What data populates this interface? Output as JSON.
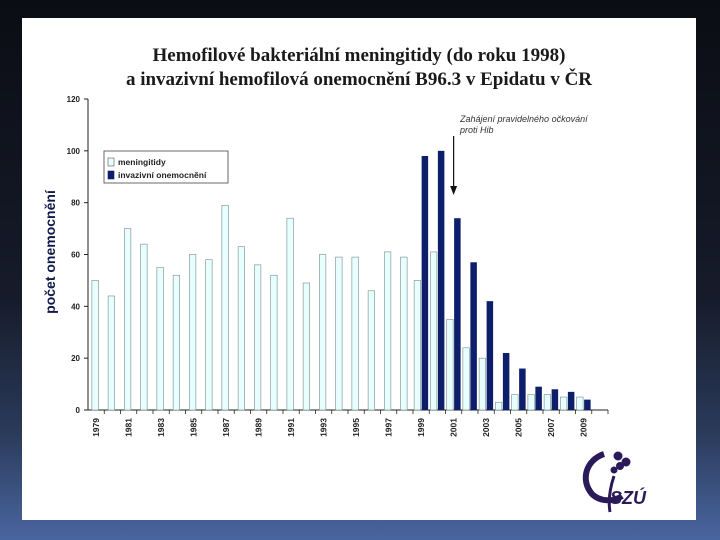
{
  "title_line1": "Hemofilové bakteriální meningitidy (do roku 1998)",
  "title_line2": "a invazivní hemofilová onemocnění B96.3 v Epidatu v ČR",
  "logo_text": "SZÚ",
  "colors": {
    "meningitidy": "#e8ffff",
    "invazivni": "#0d1f6a",
    "axis": "#222222"
  },
  "chart_data": {
    "type": "bar",
    "title": "Hemofilové bakteriální meningitidy (do roku 1998) a invazivní hemofilová onemocnění B96.3 v Epidatu v ČR",
    "ylabel": "počet onemocnění",
    "xlabel": "",
    "ylim": [
      0,
      120
    ],
    "yticks": [
      0,
      20,
      40,
      60,
      80,
      100,
      120
    ],
    "legend_position": "top-left",
    "annotation": {
      "text_line1": "Zahájení pravidelného očkování",
      "text_line2": "proti Hib",
      "year": "2001"
    },
    "categories": [
      "1979",
      "1980",
      "1981",
      "1982",
      "1983",
      "1984",
      "1985",
      "1986",
      "1987",
      "1988",
      "1989",
      "1990",
      "1991",
      "1992",
      "1993",
      "1994",
      "1995",
      "1996",
      "1997",
      "1998",
      "1999",
      "2000",
      "2001",
      "2002",
      "2003",
      "2004",
      "2005",
      "2006",
      "2007",
      "2008",
      "2009",
      "2010"
    ],
    "xtick_labels": [
      "1979",
      "1981",
      "1983",
      "1985",
      "1987",
      "1989",
      "1991",
      "1993",
      "1995",
      "1997",
      "1999",
      "2001",
      "2003",
      "2005",
      "2007",
      "2009"
    ],
    "series": [
      {
        "name": "meningitidy",
        "values": [
          50,
          44,
          70,
          64,
          55,
          52,
          60,
          58,
          79,
          63,
          56,
          52,
          74,
          49,
          60,
          59,
          59,
          46,
          61,
          59,
          50,
          61,
          35,
          24,
          20,
          3,
          6,
          6,
          6,
          5,
          5,
          null
        ]
      },
      {
        "name": "invazivní onemocnění",
        "values": [
          null,
          null,
          null,
          null,
          null,
          null,
          null,
          null,
          null,
          null,
          null,
          null,
          null,
          null,
          null,
          null,
          null,
          null,
          null,
          null,
          98,
          100,
          74,
          57,
          42,
          22,
          16,
          9,
          8,
          7,
          4,
          null
        ]
      }
    ]
  }
}
